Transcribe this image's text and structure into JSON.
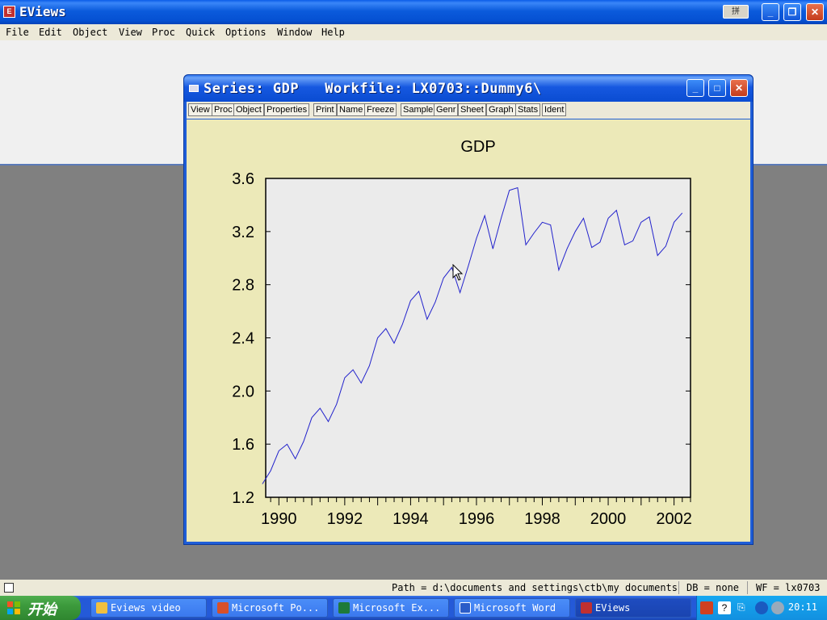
{
  "app": {
    "title": "EViews",
    "icon": "eviews-app-icon",
    "ime_label": "拼"
  },
  "menu": [
    "File",
    "Edit",
    "Object",
    "View",
    "Proc",
    "Quick",
    "Options",
    "Window",
    "Help"
  ],
  "series_window": {
    "title": "Series: GDP   Workfile: LX0703::Dummy6\\",
    "toolbar": [
      "View",
      "Proc",
      "Object",
      "Properties",
      "Print",
      "Name",
      "Freeze",
      "Sample",
      "Genr",
      "Sheet",
      "Graph",
      "Stats",
      "Ident"
    ]
  },
  "chart_data": {
    "type": "line",
    "title": "GDP",
    "xlabel": "",
    "ylabel": "",
    "xlim": [
      1989.6,
      2002.5
    ],
    "ylim": [
      1.2,
      3.6
    ],
    "yticks": [
      "1.2",
      "1.6",
      "2.0",
      "2.4",
      "2.8",
      "3.2",
      "3.6"
    ],
    "xticks": [
      "1990",
      "1992",
      "1994",
      "1996",
      "1998",
      "2000",
      "2002"
    ],
    "grid": false,
    "colors": {
      "line": "#2222cc",
      "plot_bg": "#ebebeb",
      "panel_bg": "#ece9b8"
    },
    "series": [
      {
        "frequency": "quarterly",
        "start": "1989Q3",
        "values": [
          1.3,
          1.4,
          1.55,
          1.6,
          1.49,
          1.62,
          1.8,
          1.87,
          1.77,
          1.9,
          2.1,
          2.16,
          2.06,
          2.19,
          2.4,
          2.47,
          2.36,
          2.5,
          2.68,
          2.75,
          2.54,
          2.67,
          2.85,
          2.93,
          2.74,
          2.94,
          3.15,
          3.32,
          3.07,
          3.3,
          3.51,
          3.53,
          3.1,
          3.19,
          3.27,
          3.25,
          2.91,
          3.07,
          3.2,
          3.3,
          3.08,
          3.12,
          3.3,
          3.36,
          3.1,
          3.13,
          3.27,
          3.31,
          3.02,
          3.09,
          3.27,
          3.34
        ]
      }
    ]
  },
  "status": {
    "path": "Path = d:\\documents and settings\\ctb\\my documents",
    "db": "DB = none",
    "wf": "WF = lx0703"
  },
  "taskbar": {
    "start": "开始",
    "items": [
      "Eviews video",
      "Microsoft Po...",
      "Microsoft Ex...",
      "Microsoft Word",
      "EViews"
    ],
    "clock": "20:11"
  }
}
